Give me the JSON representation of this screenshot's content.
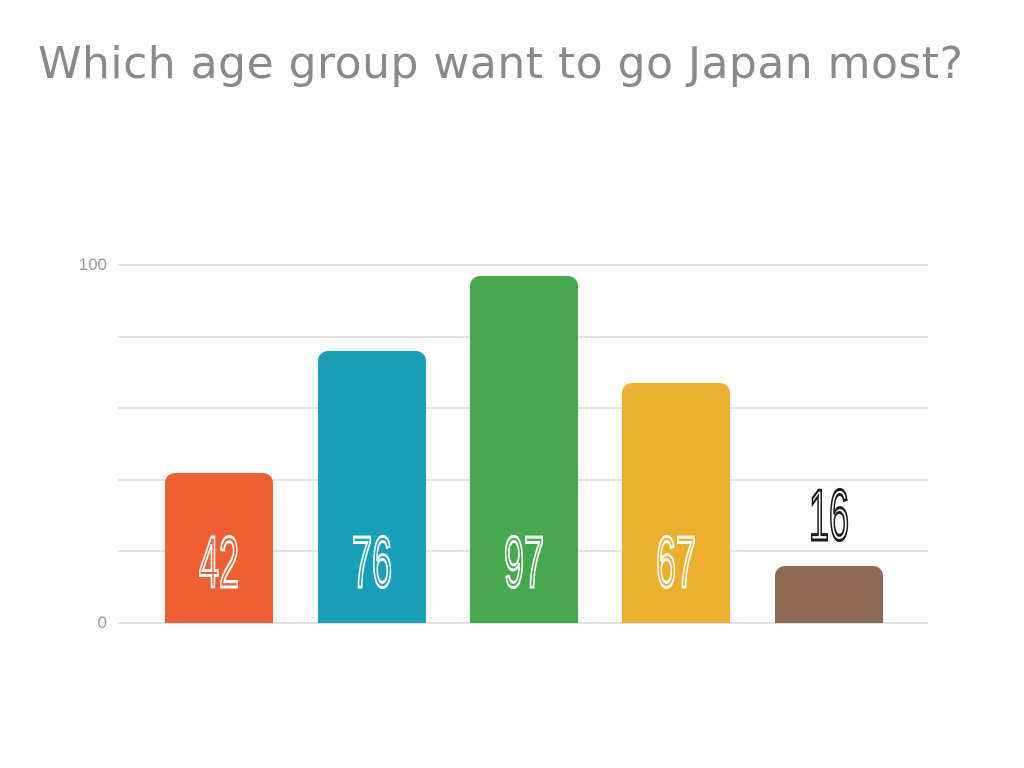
{
  "slide": {
    "background_color": "#ffffff"
  },
  "chart_data": {
    "type": "bar",
    "title": "Which age group want to go Japan most?",
    "title_color": "#8a8a8a",
    "values": [
      42,
      76,
      97,
      67,
      16
    ],
    "data_labels": [
      "42",
      "76",
      "97",
      "67",
      "16"
    ],
    "bar_colors": [
      "#ef5f34",
      "#18a0b8",
      "#46a94e",
      "#ebaf2d",
      "#8c6a55"
    ],
    "ylim": [
      0,
      100
    ],
    "y_ticks": [
      0,
      100
    ],
    "y_tick_labels": [
      "0",
      "100"
    ],
    "gridline_values": [
      0,
      20,
      40,
      60,
      80,
      100
    ],
    "grid": true,
    "legend": false,
    "xlabel": "",
    "ylabel": "",
    "styles": {
      "gridline_color": "#e2e2e2",
      "tick_label_color": "#999999",
      "data_label_color_inside": "#ffffff",
      "data_label_color_outside": "#1c1c1c"
    }
  }
}
